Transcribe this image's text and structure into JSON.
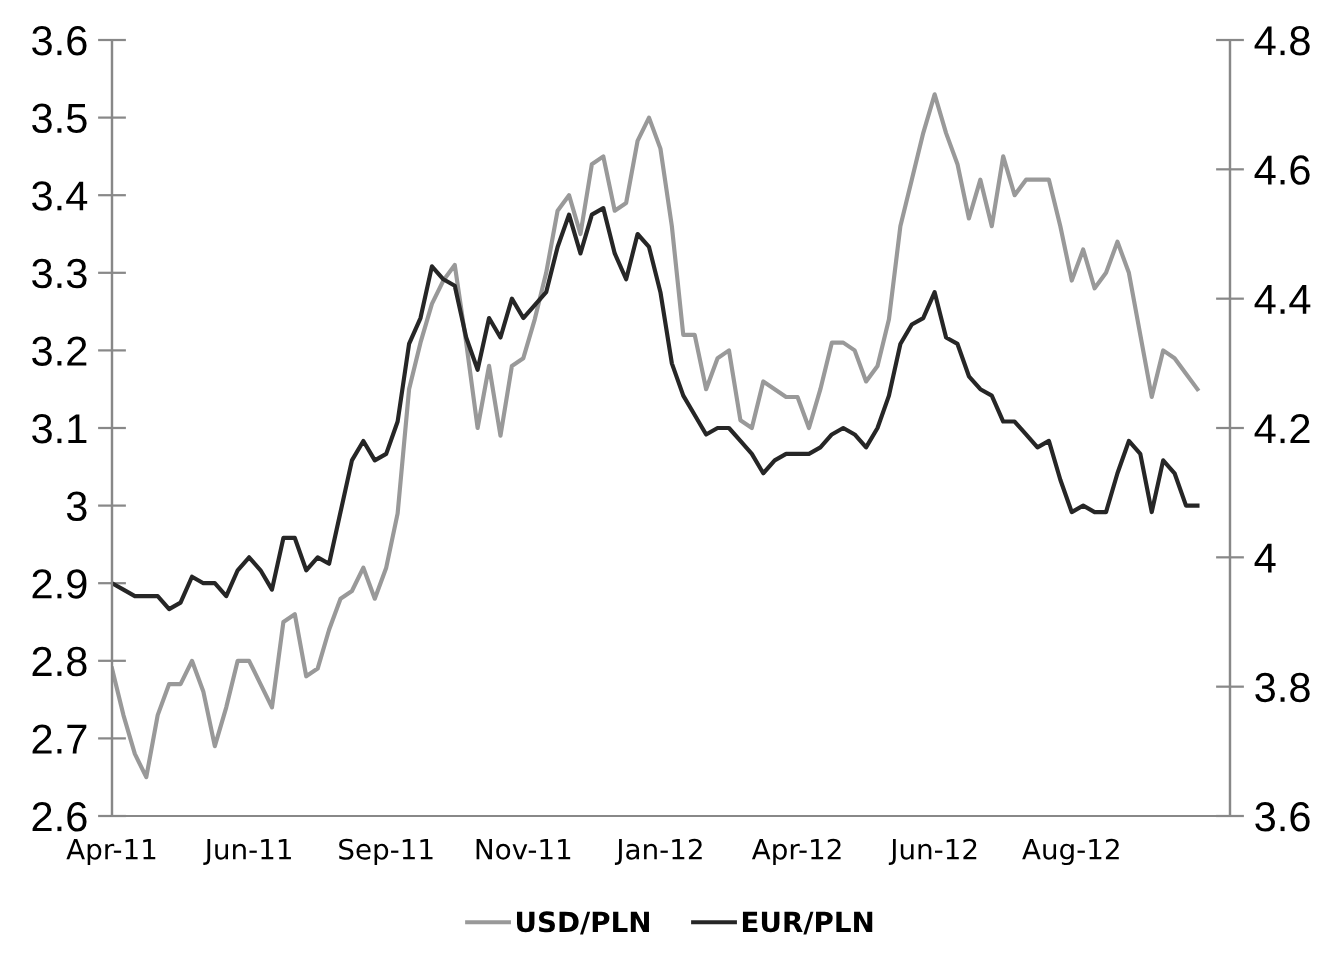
{
  "chart_data": {
    "type": "line",
    "categories": [
      "Apr-11",
      null,
      null,
      null,
      null,
      null,
      null,
      null,
      null,
      null,
      null,
      null,
      "Jun-11",
      null,
      null,
      null,
      null,
      null,
      null,
      null,
      null,
      null,
      null,
      null,
      "Sep-11",
      null,
      null,
      null,
      null,
      null,
      null,
      null,
      null,
      null,
      null,
      null,
      "Nov-11",
      null,
      null,
      null,
      null,
      null,
      null,
      null,
      null,
      null,
      null,
      null,
      "Jan-12",
      null,
      null,
      null,
      null,
      null,
      null,
      null,
      null,
      null,
      null,
      null,
      "Apr-12",
      null,
      null,
      null,
      null,
      null,
      null,
      null,
      null,
      null,
      null,
      null,
      "Jun-12",
      null,
      null,
      null,
      null,
      null,
      null,
      null,
      null,
      null,
      null,
      null,
      "Aug-12",
      null,
      null,
      null,
      null,
      null,
      null,
      null,
      null,
      null,
      null,
      null
    ],
    "ylim": [
      2.6,
      3.6
    ],
    "yticks": [
      2.6,
      2.7,
      2.8,
      2.9,
      3,
      3.1,
      3.2,
      3.3,
      3.4,
      3.5,
      3.6
    ],
    "y2lim": [
      3.6,
      4.8
    ],
    "y2ticks": [
      3.6,
      3.8,
      4,
      4.2,
      4.4,
      4.6,
      4.8
    ],
    "grid": false,
    "legend": "bottom",
    "line_style": "solid",
    "series": [
      {
        "name": "USD/PLN",
        "color": "#999999",
        "values": [
          2.79,
          2.73,
          2.68,
          2.65,
          2.73,
          2.77,
          2.77,
          2.8,
          2.76,
          2.69,
          2.74,
          2.8,
          2.8,
          2.77,
          2.74,
          2.85,
          2.86,
          2.78,
          2.79,
          2.84,
          2.88,
          2.89,
          2.92,
          2.88,
          2.92,
          2.99,
          3.15,
          3.21,
          3.26,
          3.29,
          3.31,
          3.21,
          3.1,
          3.18,
          3.09,
          3.18,
          3.19,
          3.24,
          3.3,
          3.38,
          3.4,
          3.35,
          3.44,
          3.45,
          3.38,
          3.39,
          3.47,
          3.5,
          3.46,
          3.36,
          3.22,
          3.22,
          3.15,
          3.19,
          3.2,
          3.11,
          3.1,
          3.16,
          3.15,
          3.14,
          3.14,
          3.1,
          3.15,
          3.21,
          3.21,
          3.2,
          3.16,
          3.18,
          3.24,
          3.36,
          3.42,
          3.48,
          3.53,
          3.48,
          3.44,
          3.37,
          3.42,
          3.36,
          3.45,
          3.4,
          3.42,
          3.42,
          3.42,
          3.36,
          3.29,
          3.33,
          3.28,
          3.3,
          3.34,
          3.3,
          3.22,
          3.14,
          3.2,
          3.19,
          3.17,
          3.15
        ]
      },
      {
        "name": "EUR/PLN",
        "color": "#262626",
        "axis": "y2",
        "values": [
          3.96,
          3.95,
          3.94,
          3.94,
          3.94,
          3.92,
          3.93,
          3.97,
          3.96,
          3.96,
          3.94,
          3.98,
          4.0,
          3.98,
          3.95,
          4.03,
          4.03,
          3.98,
          4.0,
          3.99,
          4.07,
          4.15,
          4.18,
          4.15,
          4.16,
          4.21,
          4.33,
          4.37,
          4.45,
          4.43,
          4.42,
          4.34,
          4.29,
          4.37,
          4.34,
          4.4,
          4.37,
          4.39,
          4.41,
          4.48,
          4.53,
          4.47,
          4.53,
          4.54,
          4.47,
          4.43,
          4.5,
          4.48,
          4.41,
          4.3,
          4.25,
          4.22,
          4.19,
          4.2,
          4.2,
          4.18,
          4.16,
          4.13,
          4.15,
          4.16,
          4.16,
          4.16,
          4.17,
          4.19,
          4.2,
          4.19,
          4.17,
          4.2,
          4.25,
          4.33,
          4.36,
          4.37,
          4.41,
          4.34,
          4.33,
          4.28,
          4.26,
          4.25,
          4.21,
          4.21,
          4.19,
          4.17,
          4.18,
          4.12,
          4.07,
          4.08,
          4.07,
          4.07,
          4.13,
          4.18,
          4.16,
          4.07,
          4.15,
          4.13,
          4.08,
          4.08
        ]
      }
    ]
  }
}
